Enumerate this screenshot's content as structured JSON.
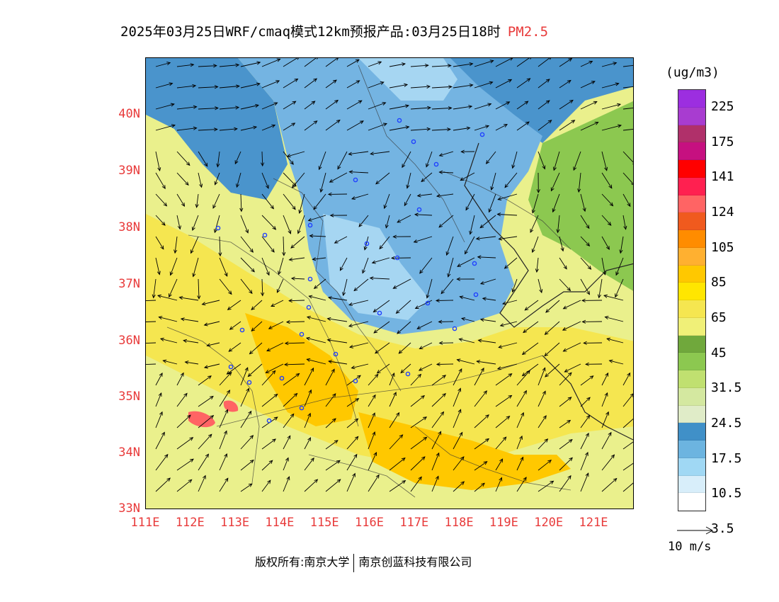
{
  "title": {
    "text": "2025年03月25日WRF/cmaq模式12km预报产品:03月25日18时",
    "species": "PM2.5"
  },
  "axes": {
    "lat_labels": [
      "40N",
      "39N",
      "38N",
      "37N",
      "36N",
      "35N",
      "34N",
      "33N"
    ],
    "lon_labels": [
      "111E",
      "112E",
      "113E",
      "114E",
      "115E",
      "116E",
      "117E",
      "118E",
      "119E",
      "120E",
      "121E"
    ],
    "lat_range": [
      33,
      41
    ],
    "lon_range": [
      111,
      121.9
    ]
  },
  "legend": {
    "unit": "(ug/m3)",
    "colors": [
      "#9c2ee0",
      "#a83cd0",
      "#b0306a",
      "#c61080",
      "#ff0000",
      "#ff2050",
      "#ff6464",
      "#f05a1e",
      "#ff8c00",
      "#ffb030",
      "#ffc800",
      "#ffe600",
      "#f5e650",
      "#f0f078",
      "#70a83c",
      "#8cc850",
      "#c0e070",
      "#d4e8a0",
      "#e0ecc8",
      "#4090c8",
      "#6cb4e0",
      "#a0d8f4",
      "#d8eefa",
      "#ffffff"
    ],
    "labels": [
      "225",
      "175",
      "141",
      "124",
      "105",
      "85",
      "65",
      "45",
      "31.5",
      "24.5",
      "17.5",
      "10.5",
      "3.5"
    ]
  },
  "reference_vector": {
    "label": "10 m/s"
  },
  "footer": {
    "copyright_prefix": "版权所有:南京大学",
    "company": "南京创蓝科技有限公司"
  },
  "map": {
    "background_color": "#eaf08c",
    "regions": [
      {
        "name": "north-clean-air",
        "color": "#4a94cc"
      },
      {
        "name": "beijing-hebei-plain",
        "color": "#74b4e2"
      },
      {
        "name": "shandong-inland",
        "color": "#a6d6f2"
      },
      {
        "name": "yellow-sea",
        "color": "#8cc850"
      },
      {
        "name": "central-haze-band",
        "color": "#f5e650"
      },
      {
        "name": "high-pm-core",
        "color": "#ffc800"
      },
      {
        "name": "hotspot",
        "color": "#ff6464"
      }
    ],
    "station_color": "#2040ff"
  }
}
